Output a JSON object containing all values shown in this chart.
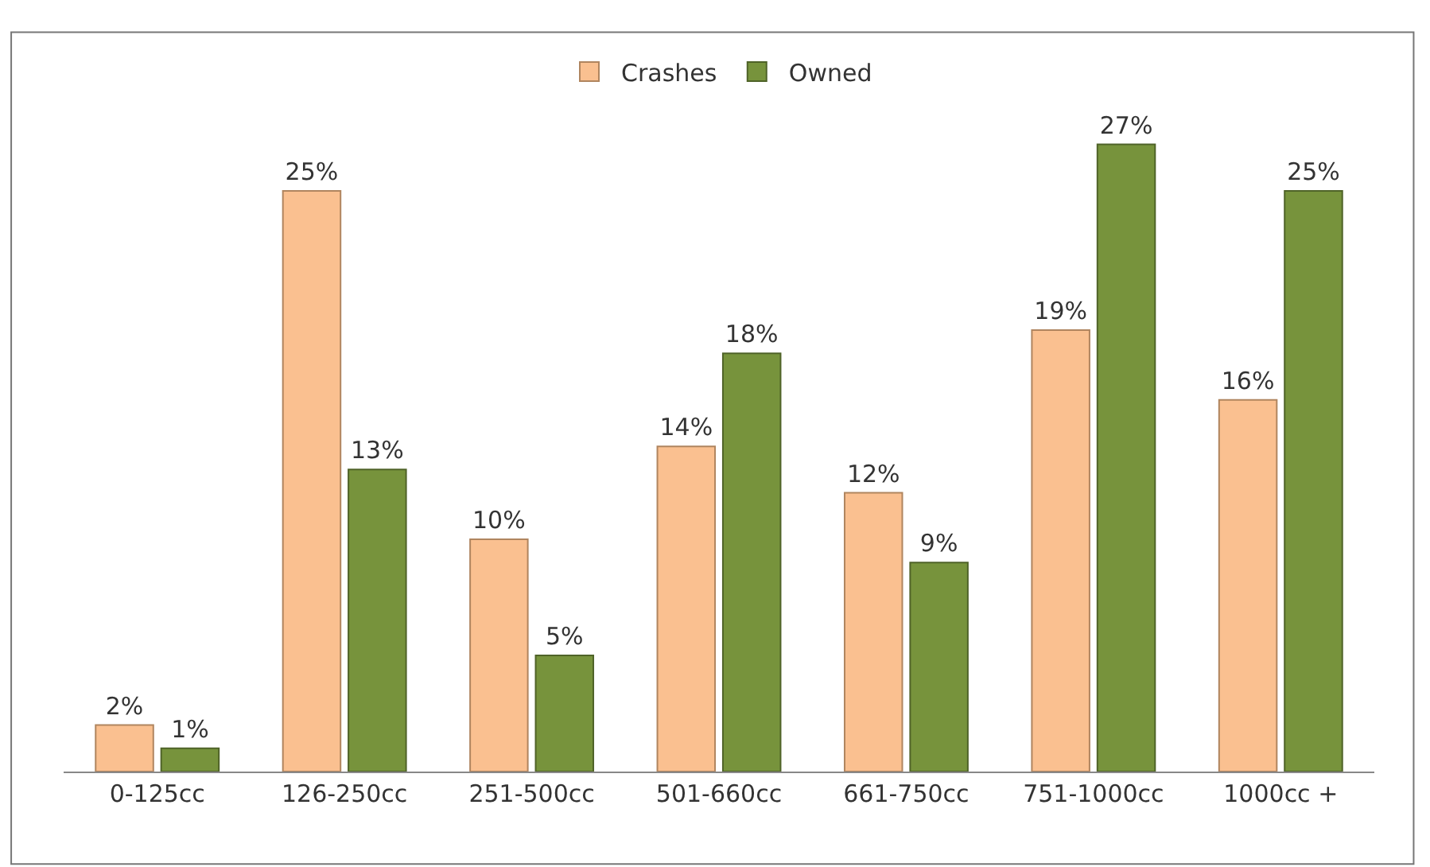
{
  "chart_data": {
    "type": "bar",
    "categories": [
      "0-125cc",
      "126-250cc",
      "251-500cc",
      "501-660cc",
      "661-750cc",
      "751-1000cc",
      "1000cc +"
    ],
    "series": [
      {
        "name": "Crashes",
        "color": "#fac090",
        "values": [
          2,
          25,
          10,
          14,
          12,
          19,
          16
        ],
        "value_labels": [
          "2%",
          "25%",
          "10%",
          "14%",
          "12%",
          "19%",
          "16%"
        ]
      },
      {
        "name": "Owned",
        "color": "#77933c",
        "values": [
          1,
          13,
          5,
          18,
          9,
          27,
          25
        ],
        "value_labels": [
          "1%",
          "13%",
          "5%",
          "18%",
          "9%",
          "27%",
          "25%"
        ]
      }
    ],
    "legend": "top",
    "tick_labels": "x"
  }
}
